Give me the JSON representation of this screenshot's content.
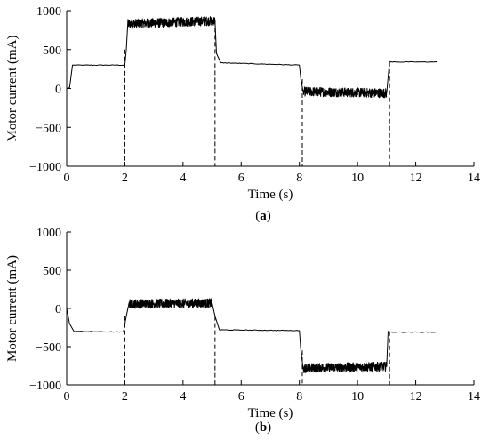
{
  "chart_data": [
    {
      "type": "line",
      "caption_letter": "a",
      "xlabel": "Time (s)",
      "ylabel": "Motor current (mA)",
      "xlim": [
        0,
        14
      ],
      "ylim": [
        -1000,
        1000
      ],
      "xticks": [
        0,
        2,
        4,
        6,
        8,
        10,
        12,
        14
      ],
      "yticks": [
        1000,
        500,
        0,
        -500,
        -1000
      ],
      "grid": false,
      "segment_boundaries_s": [
        2,
        5.1,
        8.1,
        11.1
      ],
      "series": [
        {
          "points": [
            [
              0,
              0
            ],
            [
              0.1,
              10
            ],
            [
              0.2,
              300
            ],
            [
              2.0,
              300
            ],
            [
              2.05,
              500
            ],
            [
              2.1,
              830
            ],
            [
              5.1,
              870
            ],
            [
              5.15,
              450
            ],
            [
              5.3,
              330
            ],
            [
              8.0,
              300
            ],
            [
              8.05,
              120
            ],
            [
              8.15,
              -40
            ],
            [
              11.0,
              -60
            ],
            [
              11.05,
              150
            ],
            [
              11.1,
              340
            ],
            [
              12.75,
              340
            ]
          ],
          "noise": [
            {
              "from": 2.1,
              "to": 5.1,
              "amplitude": 60
            },
            {
              "from": 8.15,
              "to": 11.0,
              "amplitude": 60
            }
          ]
        }
      ]
    },
    {
      "type": "line",
      "caption_letter": "b",
      "xlabel": "Time (s)",
      "ylabel": "Motor current (mA)",
      "xlim": [
        0,
        14
      ],
      "ylim": [
        -1000,
        1000
      ],
      "xticks": [
        0,
        2,
        4,
        6,
        8,
        10,
        12,
        14
      ],
      "yticks": [
        1000,
        500,
        0,
        -500,
        -1000
      ],
      "grid": false,
      "segment_boundaries_s": [
        2,
        5.1,
        8.1,
        11.1
      ],
      "series": [
        {
          "points": [
            [
              0,
              0
            ],
            [
              0.1,
              -200
            ],
            [
              0.25,
              -300
            ],
            [
              1.95,
              -310
            ],
            [
              2.05,
              -100
            ],
            [
              2.15,
              60
            ],
            [
              5.0,
              70
            ],
            [
              5.1,
              -100
            ],
            [
              5.25,
              -280
            ],
            [
              8.0,
              -290
            ],
            [
              8.05,
              -550
            ],
            [
              8.15,
              -780
            ],
            [
              11.0,
              -760
            ],
            [
              11.05,
              -300
            ],
            [
              11.15,
              -310
            ],
            [
              12.75,
              -310
            ]
          ],
          "noise": [
            {
              "from": 2.15,
              "to": 5.0,
              "amplitude": 60
            },
            {
              "from": 8.15,
              "to": 11.0,
              "amplitude": 60
            }
          ]
        }
      ]
    }
  ]
}
